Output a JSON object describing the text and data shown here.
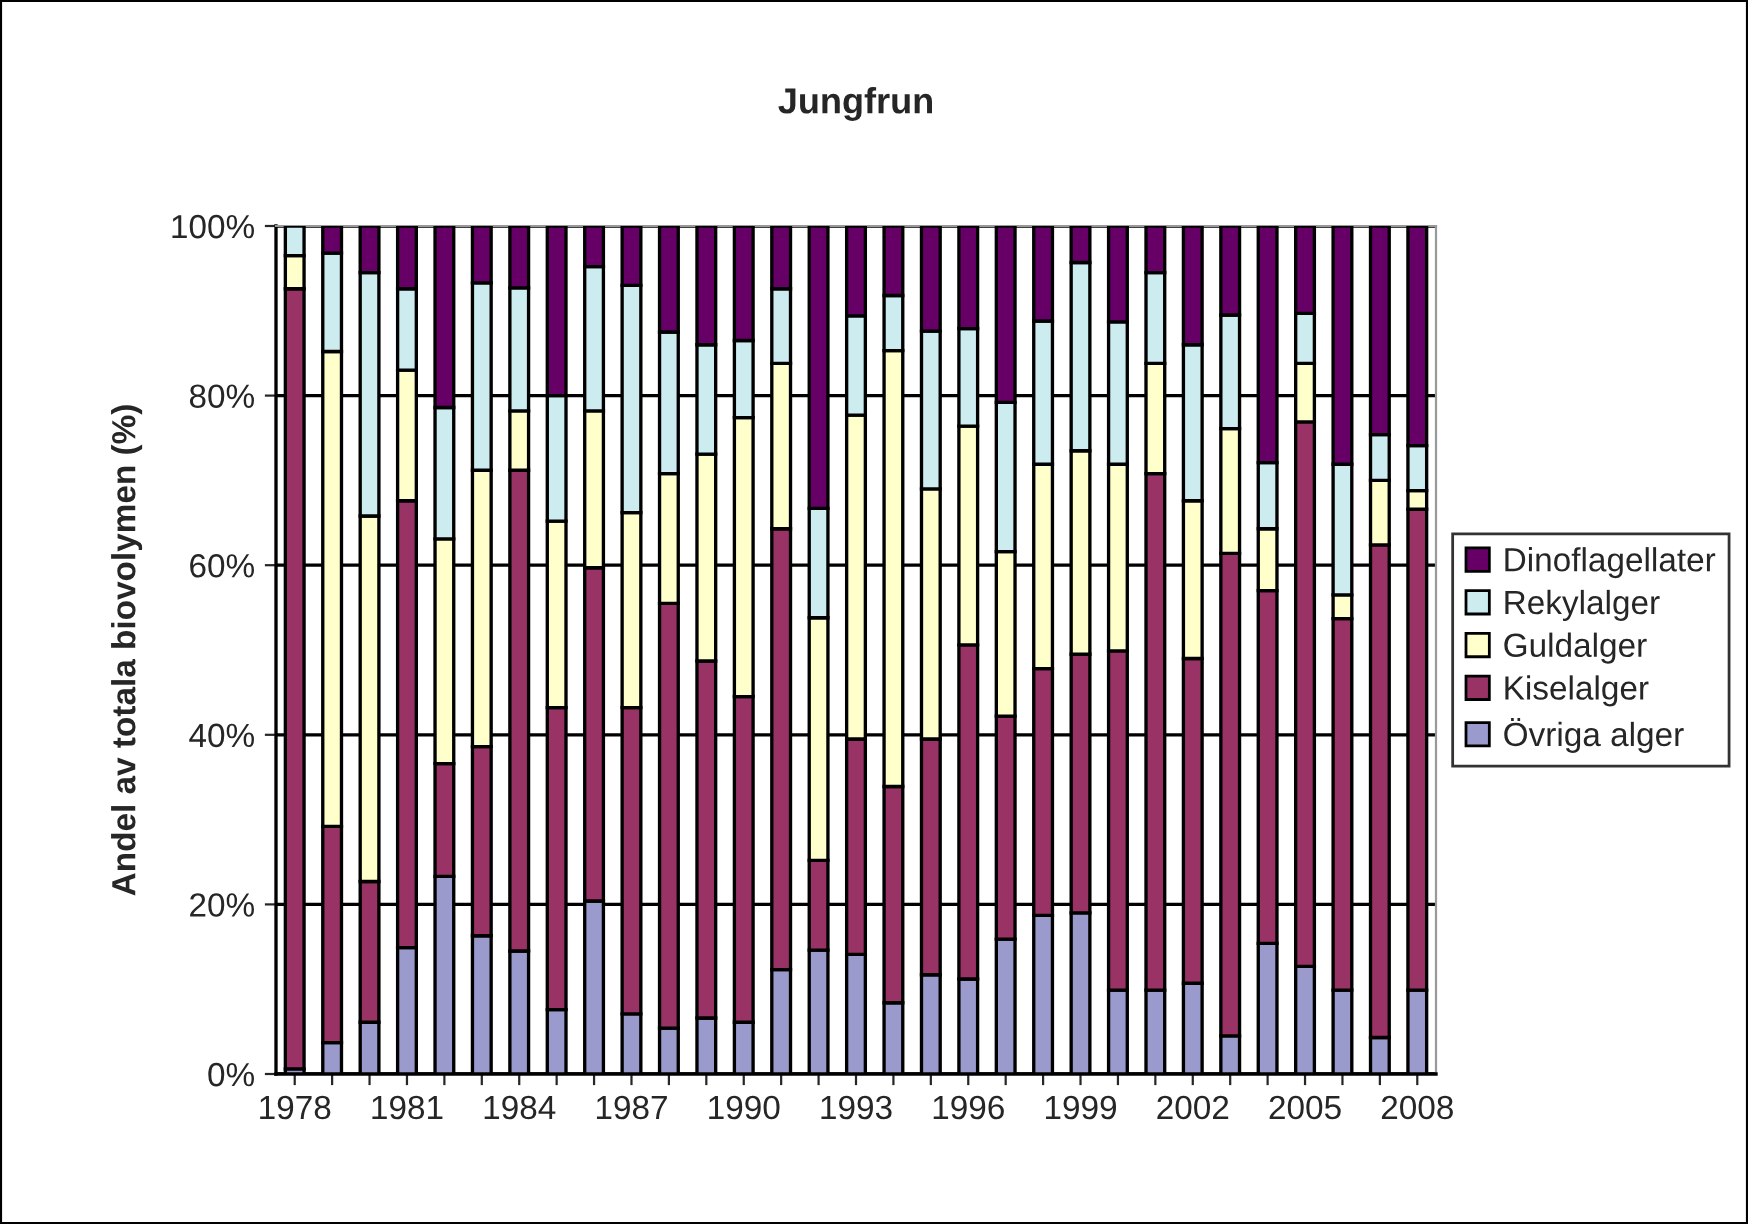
{
  "chart_data": {
    "type": "bar",
    "title": "Jungfrun",
    "ylabel": "Andel av totala biovolymen (%)",
    "stacked": true,
    "categories": [
      "1978",
      null,
      null,
      "1981",
      null,
      null,
      "1984",
      null,
      null,
      "1987",
      null,
      null,
      "1990",
      null,
      null,
      "1993",
      null,
      null,
      "1996",
      null,
      null,
      "1999",
      null,
      null,
      "2002",
      null,
      null,
      "2005",
      null,
      null,
      "2008"
    ],
    "series": [
      {
        "name": "Övriga alger",
        "color": "#9a9acd",
        "values": [
          0.6,
          3.7,
          6.1,
          14.9,
          23.3,
          16.3,
          14.5,
          7.6,
          20.4,
          7.1,
          5.4,
          6.6,
          6.1,
          12.3,
          14.6,
          14.1,
          8.4,
          11.7,
          11.2,
          15.9,
          18.7,
          19.0,
          9.9,
          9.9,
          10.7,
          4.5,
          15.4,
          12.7,
          9.9,
          4.3,
          9.9
        ]
      },
      {
        "name": "Kiselalger",
        "color": "#993366",
        "values": [
          92.0,
          25.5,
          16.6,
          52.7,
          13.3,
          22.3,
          56.7,
          35.6,
          39.3,
          36.1,
          50.1,
          42.1,
          38.4,
          52.0,
          10.6,
          25.4,
          25.5,
          27.8,
          39.4,
          26.3,
          29.1,
          30.5,
          40.0,
          60.9,
          38.3,
          56.9,
          41.6,
          64.2,
          43.8,
          58.1,
          56.7
        ]
      },
      {
        "name": "Guldalger",
        "color": "#ffffcc",
        "values": [
          3.9,
          56.0,
          43.1,
          15.4,
          26.5,
          32.6,
          7.0,
          22.0,
          18.5,
          23.0,
          15.3,
          24.4,
          32.9,
          19.5,
          28.6,
          38.2,
          51.4,
          29.5,
          25.8,
          19.4,
          24.1,
          24.0,
          22.0,
          13.0,
          18.6,
          14.7,
          7.3,
          6.9,
          2.8,
          7.6,
          2.2
        ]
      },
      {
        "name": "Rekylalger",
        "color": "#ccecf0",
        "values": [
          3.5,
          11.6,
          28.7,
          9.6,
          15.5,
          22.1,
          14.5,
          14.8,
          17.0,
          26.8,
          16.7,
          12.9,
          9.1,
          8.8,
          12.9,
          11.7,
          6.5,
          18.6,
          11.5,
          17.6,
          16.9,
          22.2,
          16.8,
          10.7,
          18.4,
          13.4,
          7.8,
          5.9,
          15.4,
          5.4,
          5.3
        ]
      },
      {
        "name": "Dinoflagellater",
        "color": "#660066",
        "values": [
          0,
          3.2,
          5.5,
          7.4,
          21.4,
          6.7,
          7.3,
          20.0,
          4.8,
          7.0,
          12.5,
          14.0,
          13.5,
          7.4,
          33.3,
          10.6,
          8.2,
          12.4,
          12.1,
          20.8,
          11.2,
          4.3,
          11.3,
          5.5,
          14.0,
          10.5,
          27.9,
          10.3,
          28.1,
          24.6,
          25.9
        ]
      }
    ],
    "ylim": [
      0,
      100
    ],
    "yticks": [
      {
        "value": 0,
        "label": "0%"
      },
      {
        "value": 20,
        "label": "20%"
      },
      {
        "value": 40,
        "label": "40%"
      },
      {
        "value": 60,
        "label": "60%"
      },
      {
        "value": 80,
        "label": "80%"
      },
      {
        "value": 100,
        "label": "100%"
      }
    ],
    "grid": "y",
    "legend": "right"
  }
}
